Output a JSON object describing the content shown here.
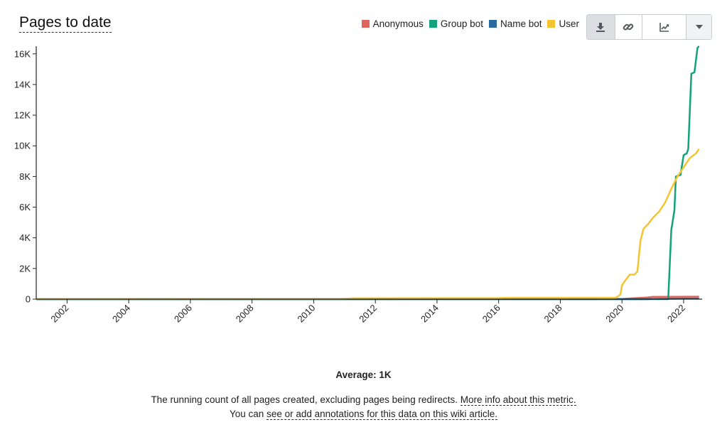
{
  "header": {
    "title": "Pages to date"
  },
  "toolbar": {
    "download_icon": "download-icon",
    "link_icon": "link-icon",
    "chart_type_icon": "line-chart-icon",
    "menu_icon": "chevron-down-icon"
  },
  "footer": {
    "average": "Average: 1K",
    "description": "The running count of all pages created, excluding pages being redirects.",
    "more_info_link": "More info about this metric.",
    "annotations_prefix": "You can",
    "annotations_link": "see or add annotations for this data on this wiki article."
  },
  "chart_data": {
    "type": "line",
    "title": "Pages to date",
    "xlabel": "",
    "ylabel": "",
    "xlim": [
      2001.0,
      2022.6
    ],
    "ylim": [
      0,
      16500
    ],
    "yticks": [
      0,
      2000,
      4000,
      6000,
      8000,
      10000,
      12000,
      14000,
      16000
    ],
    "ytick_labels": [
      "0",
      "2K",
      "4K",
      "6K",
      "8K",
      "10K",
      "12K",
      "14K",
      "16K"
    ],
    "xticks": [
      2002,
      2004,
      2006,
      2008,
      2010,
      2012,
      2014,
      2016,
      2018,
      2020,
      2022
    ],
    "xtick_labels": [
      "2002",
      "2004",
      "2006",
      "2008",
      "2010",
      "2012",
      "2014",
      "2016",
      "2018",
      "2020",
      "2022"
    ],
    "grid": false,
    "legend_position": "top-right",
    "series": [
      {
        "name": "Anonymous",
        "color": "#dd665c",
        "points": [
          [
            2001.0,
            0
          ],
          [
            2020.0,
            10
          ],
          [
            2020.3,
            50
          ],
          [
            2020.8,
            100
          ],
          [
            2021.0,
            150
          ],
          [
            2022.5,
            160
          ]
        ]
      },
      {
        "name": "Group bot",
        "color": "#12a37a",
        "points": [
          [
            2001.0,
            0
          ],
          [
            2021.5,
            0
          ],
          [
            2021.6,
            4500
          ],
          [
            2021.7,
            5800
          ],
          [
            2021.75,
            8000
          ],
          [
            2021.9,
            8100
          ],
          [
            2022.0,
            9400
          ],
          [
            2022.1,
            9500
          ],
          [
            2022.15,
            9800
          ],
          [
            2022.25,
            14700
          ],
          [
            2022.35,
            14800
          ],
          [
            2022.45,
            16400
          ],
          [
            2022.5,
            16500
          ]
        ]
      },
      {
        "name": "Name bot",
        "color": "#2a6b9f",
        "points": [
          [
            2001.0,
            0
          ],
          [
            2020.8,
            0
          ],
          [
            2021.0,
            20
          ],
          [
            2021.5,
            30
          ],
          [
            2022.5,
            40
          ]
        ]
      },
      {
        "name": "User",
        "color": "#f5c431",
        "points": [
          [
            2001.0,
            20
          ],
          [
            2011.0,
            25
          ],
          [
            2011.3,
            60
          ],
          [
            2016.0,
            70
          ],
          [
            2016.2,
            90
          ],
          [
            2019.8,
            90
          ],
          [
            2019.95,
            300
          ],
          [
            2020.0,
            900
          ],
          [
            2020.1,
            1200
          ],
          [
            2020.25,
            1600
          ],
          [
            2020.4,
            1600
          ],
          [
            2020.5,
            1800
          ],
          [
            2020.6,
            3800
          ],
          [
            2020.7,
            4600
          ],
          [
            2020.85,
            4900
          ],
          [
            2021.0,
            5300
          ],
          [
            2021.2,
            5700
          ],
          [
            2021.4,
            6300
          ],
          [
            2021.6,
            7200
          ],
          [
            2021.8,
            8000
          ],
          [
            2022.0,
            8600
          ],
          [
            2022.2,
            9200
          ],
          [
            2022.4,
            9500
          ],
          [
            2022.5,
            9800
          ]
        ]
      }
    ]
  }
}
